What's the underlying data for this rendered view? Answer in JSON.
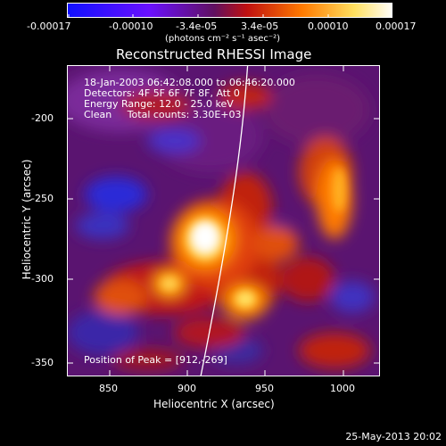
{
  "colorbar": {
    "tick_labels": [
      "-0.00017",
      "-0.00010",
      "-3.4e-05",
      "3.4e-05",
      "0.00010",
      "0.00017"
    ],
    "units": "(photons cm⁻² s⁻¹ asec⁻²)",
    "colors": [
      "#0000ff",
      "#7a00ff",
      "#ff3000",
      "#ff9a00",
      "#ffff7a",
      "#ffffff"
    ]
  },
  "title": "Reconstructed RHESSI Image",
  "info": {
    "line1": "18-Jan-2003 06:42:08.000 to 06:46:20.000",
    "line2": "Detectors: 4F 5F 6F 7F 8F, Att 0",
    "line3": "Energy Range: 12.0 - 25.0 keV",
    "line4": "Clean     Total counts: 3.30E+03",
    "peak": "Position of Peak = [912,-269]"
  },
  "axes": {
    "xlabel": "Heliocentric X (arcsec)",
    "ylabel": "Heliocentric Y (arcsec)",
    "xticks": [
      "850",
      "900",
      "950",
      "1000"
    ],
    "yticks": [
      "-200",
      "-250",
      "-300",
      "-350"
    ]
  },
  "footer": {
    "timestamp": "25-May-2013 20:02"
  }
}
